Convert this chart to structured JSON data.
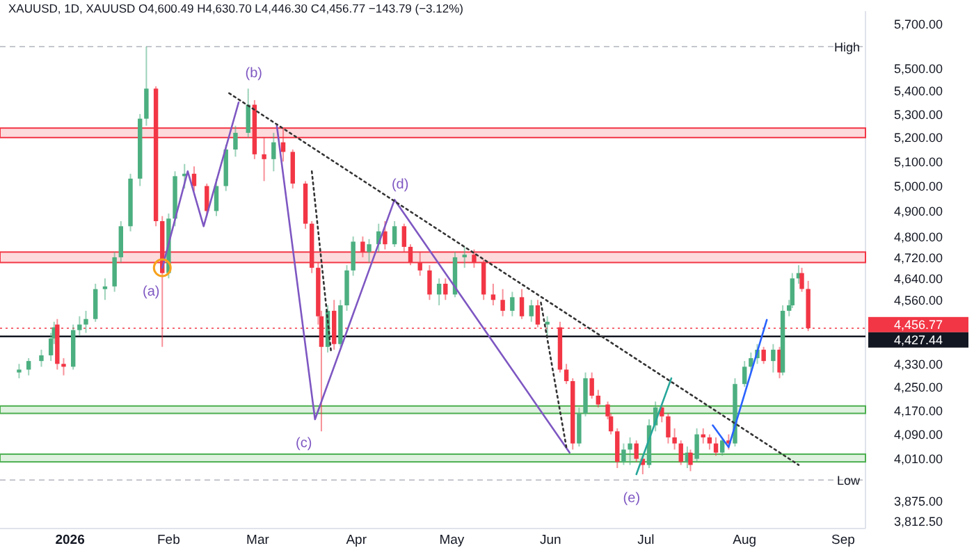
{
  "chart_data": {
    "type": "candlestick",
    "title": "XAUUSD, 1D, XAUUSD O4,600.49 H4,630.70 L4,446.30 C4,456.77 −143.79 (−3.12%)",
    "log": "y",
    "xlim": [
      "2025-12-10",
      "2026-09-08"
    ],
    "ylim": [
      3790,
      5760
    ],
    "xticks": [
      {
        "value": "2026-01-01",
        "label": "2026"
      },
      {
        "value": "2026-02-01",
        "label": "Feb"
      },
      {
        "value": "2026-03-01",
        "label": "Mar"
      },
      {
        "value": "2026-04-01",
        "label": "Apr"
      },
      {
        "value": "2026-05-01",
        "label": "May"
      },
      {
        "value": "2026-06-01",
        "label": "Jun"
      },
      {
        "value": "2026-07-01",
        "label": "Jul"
      },
      {
        "value": "2026-08-01",
        "label": "Aug"
      },
      {
        "value": "2026-09-01",
        "label": "Sep"
      }
    ],
    "yticks": [
      {
        "value": 5700,
        "label": "5,700.00"
      },
      {
        "value": 5500,
        "label": "5,500.00"
      },
      {
        "value": 5400,
        "label": "5,400.00"
      },
      {
        "value": 5300,
        "label": "5,300.00"
      },
      {
        "value": 5200,
        "label": "5,200.00"
      },
      {
        "value": 5100,
        "label": "5,100.00"
      },
      {
        "value": 5000,
        "label": "5,000.00"
      },
      {
        "value": 4900,
        "label": "4,900.00"
      },
      {
        "value": 4800,
        "label": "4,800.00"
      },
      {
        "value": 4720,
        "label": "4,720.00"
      },
      {
        "value": 4640,
        "label": "4,640.00"
      },
      {
        "value": 4560,
        "label": "4,560.00"
      },
      {
        "value": 4456.77,
        "label": "4,456.77"
      },
      {
        "value": 4427.44,
        "label": "4,427.44"
      },
      {
        "value": 4330,
        "label": "4,330.00"
      },
      {
        "value": 4250,
        "label": "4,250.00"
      },
      {
        "value": 4170,
        "label": "4,170.00"
      },
      {
        "value": 4090,
        "label": "4,090.00"
      },
      {
        "value": 4010,
        "label": "4,010.00"
      },
      {
        "value": 3875,
        "label": "3,875.00"
      },
      {
        "value": 3812.5,
        "label": "3,812.50"
      }
    ],
    "ref_lines": [
      {
        "axis": "y",
        "value": 5597.04,
        "label": "High",
        "color": "#b2b5be",
        "line_style": "dashed"
      },
      {
        "axis": "y",
        "value": 3941.75,
        "label": "Low",
        "color": "#b2b5be",
        "line_style": "dashed"
      },
      {
        "axis": "y",
        "value": 4456.77,
        "color": "#f23645",
        "line_style": "dotted"
      },
      {
        "axis": "y",
        "value": 4427.44,
        "color": "#131722",
        "line_style": "solid"
      }
    ],
    "bands": [
      {
        "axis": "y",
        "from": 5200,
        "to": 5240,
        "color": "#f23645"
      },
      {
        "axis": "y",
        "from": 4700,
        "to": 4740,
        "color": "#f23645"
      },
      {
        "axis": "y",
        "from": 4160,
        "to": 4185,
        "color": "#4caf50"
      },
      {
        "axis": "y",
        "from": 4000,
        "to": 4025,
        "color": "#4caf50"
      }
    ],
    "annotations": [
      {
        "text": "(a)",
        "x": "2026-01-30",
        "y": 4680
      },
      {
        "text": "(b)",
        "x": "2026-02-26",
        "y": 5410
      },
      {
        "text": "(c)",
        "x": "2026-03-19",
        "y": 4140
      },
      {
        "text": "(d)",
        "x": "2026-04-13",
        "y": 4945
      },
      {
        "text": "(e)",
        "x": "2026-06-30",
        "y": 3960
      }
    ],
    "series": [
      {
        "x": [
          "2025-12-16",
          "2025-12-19",
          "2025-12-23",
          "2025-12-26",
          "2025-12-27",
          "2025-12-28",
          "2025-12-30",
          "2026-01-02",
          "2026-01-04",
          "2026-01-06",
          "2026-01-09",
          "2026-01-12",
          "2026-01-15",
          "2026-01-17",
          "2026-01-20",
          "2026-01-23",
          "2026-01-25",
          "2026-01-28",
          "2026-01-30",
          "2026-02-01",
          "2026-02-03",
          "2026-02-06",
          "2026-02-09",
          "2026-02-13",
          "2026-02-16",
          "2026-02-19",
          "2026-02-22",
          "2026-02-26",
          "2026-02-28",
          "2026-03-03",
          "2026-03-06",
          "2026-03-09",
          "2026-03-12",
          "2026-03-16",
          "2026-03-18",
          "2026-03-20",
          "2026-03-21",
          "2026-03-23",
          "2026-03-25",
          "2026-03-27",
          "2026-03-29",
          "2026-03-31",
          "2026-04-03",
          "2026-04-05",
          "2026-04-08",
          "2026-04-10",
          "2026-04-13",
          "2026-04-16",
          "2026-04-18",
          "2026-04-21",
          "2026-04-24",
          "2026-04-27",
          "2026-04-29",
          "2026-05-02",
          "2026-05-05",
          "2026-05-08",
          "2026-05-11",
          "2026-05-14",
          "2026-05-17",
          "2026-05-20",
          "2026-05-23",
          "2026-05-26",
          "2026-05-28",
          "2026-05-31",
          "2026-06-04",
          "2026-06-06",
          "2026-06-08",
          "2026-06-10",
          "2026-06-12",
          "2026-06-14",
          "2026-06-16",
          "2026-06-19",
          "2026-06-20",
          "2026-06-22",
          "2026-06-24",
          "2026-06-26",
          "2026-06-28",
          "2026-06-30",
          "2026-07-02",
          "2026-07-04",
          "2026-07-06",
          "2026-07-08",
          "2026-07-10",
          "2026-07-12",
          "2026-07-14",
          "2026-07-15",
          "2026-07-17",
          "2026-07-19",
          "2026-07-21",
          "2026-07-23",
          "2026-07-25",
          "2026-07-27",
          "2026-07-29",
          "2026-08-01",
          "2026-08-03",
          "2026-08-05",
          "2026-08-07",
          "2026-08-10",
          "2026-08-12",
          "2026-08-13",
          "2026-08-15",
          "2026-08-16",
          "2026-08-18",
          "2026-08-19",
          "2026-08-21"
        ],
        "ohlc": [
          [
            4300,
            4330,
            4280,
            4310
          ],
          [
            4310,
            4350,
            4290,
            4340
          ],
          [
            4340,
            4380,
            4320,
            4360
          ],
          [
            4360,
            4440,
            4340,
            4420
          ],
          [
            4420,
            4480,
            4400,
            4460
          ],
          [
            4470,
            4490,
            4310,
            4330
          ],
          [
            4330,
            4350,
            4290,
            4320
          ],
          [
            4320,
            4470,
            4310,
            4450
          ],
          [
            4450,
            4500,
            4430,
            4470
          ],
          [
            4470,
            4520,
            4440,
            4490
          ],
          [
            4490,
            4620,
            4480,
            4600
          ],
          [
            4600,
            4640,
            4560,
            4610
          ],
          [
            4610,
            4740,
            4590,
            4720
          ],
          [
            4720,
            4860,
            4700,
            4840
          ],
          [
            4840,
            5050,
            4820,
            5030
          ],
          [
            5030,
            5300,
            5000,
            5280
          ],
          [
            5280,
            5597.04,
            5250,
            5410
          ],
          [
            5410,
            5420,
            4840,
            4860
          ],
          [
            4860,
            4880,
            4390,
            4660
          ],
          [
            4660,
            4890,
            4640,
            4870
          ],
          [
            4870,
            5060,
            4840,
            5040
          ],
          [
            5040,
            5090,
            4990,
            5050
          ],
          [
            5050,
            5080,
            4980,
            5000
          ],
          [
            5000,
            5010,
            4880,
            4900
          ],
          [
            4900,
            5030,
            4880,
            5000
          ],
          [
            5000,
            5170,
            4980,
            5150
          ],
          [
            5150,
            5250,
            5120,
            5220
          ],
          [
            5220,
            5410,
            5200,
            5340
          ],
          [
            5340,
            5360,
            5110,
            5130
          ],
          [
            5130,
            5200,
            5020,
            5110
          ],
          [
            5110,
            5220,
            5060,
            5180
          ],
          [
            5180,
            5240,
            5100,
            5140
          ],
          [
            5140,
            5150,
            4990,
            5010
          ],
          [
            5010,
            5020,
            4830,
            4850
          ],
          [
            4850,
            4860,
            4660,
            4680
          ],
          [
            4680,
            4700,
            4470,
            4500
          ],
          [
            4500,
            4520,
            4100,
            4390
          ],
          [
            4390,
            4540,
            4370,
            4520
          ],
          [
            4520,
            4560,
            4380,
            4400
          ],
          [
            4400,
            4560,
            4390,
            4540
          ],
          [
            4540,
            4690,
            4520,
            4670
          ],
          [
            4670,
            4800,
            4650,
            4780
          ],
          [
            4780,
            4800,
            4720,
            4740
          ],
          [
            4740,
            4790,
            4700,
            4770
          ],
          [
            4770,
            4850,
            4740,
            4820
          ],
          [
            4820,
            4860,
            4750,
            4770
          ],
          [
            4770,
            4860,
            4760,
            4840
          ],
          [
            4840,
            4850,
            4740,
            4760
          ],
          [
            4760,
            4770,
            4690,
            4700
          ],
          [
            4700,
            4740,
            4650,
            4670
          ],
          [
            4670,
            4690,
            4560,
            4580
          ],
          [
            4580,
            4640,
            4540,
            4620
          ],
          [
            4620,
            4640,
            4560,
            4580
          ],
          [
            4580,
            4740,
            4570,
            4720
          ],
          [
            4720,
            4760,
            4680,
            4730
          ],
          [
            4730,
            4750,
            4680,
            4700
          ],
          [
            4700,
            4710,
            4560,
            4580
          ],
          [
            4580,
            4620,
            4540,
            4560
          ],
          [
            4560,
            4600,
            4500,
            4520
          ],
          [
            4520,
            4590,
            4500,
            4570
          ],
          [
            4570,
            4600,
            4490,
            4500
          ],
          [
            4500,
            4560,
            4480,
            4540
          ],
          [
            4540,
            4560,
            4460,
            4470
          ],
          [
            4470,
            4500,
            4430,
            4480
          ],
          [
            4460,
            4480,
            4300,
            4310
          ],
          [
            4310,
            4330,
            4260,
            4270
          ],
          [
            4270,
            4280,
            4040,
            4060
          ],
          [
            4060,
            4180,
            4050,
            4160
          ],
          [
            4160,
            4300,
            4150,
            4280
          ],
          [
            4280,
            4300,
            4210,
            4220
          ],
          [
            4220,
            4240,
            4180,
            4190
          ],
          [
            4190,
            4200,
            4140,
            4150
          ],
          [
            4150,
            4160,
            4090,
            4100
          ],
          [
            4100,
            4110,
            3980,
            4000
          ],
          [
            4000,
            4060,
            3990,
            4040
          ],
          [
            4040,
            4080,
            3990,
            4060
          ],
          [
            4060,
            4070,
            4000,
            4010
          ],
          [
            4010,
            4020,
            3960,
            3990
          ],
          [
            3990,
            4140,
            3980,
            4120
          ],
          [
            4120,
            4200,
            4100,
            4180
          ],
          [
            4180,
            4190,
            4130,
            4150
          ],
          [
            4150,
            4160,
            4060,
            4080
          ],
          [
            4080,
            4110,
            4040,
            4060
          ],
          [
            4060,
            4070,
            3990,
            4000
          ],
          [
            4000,
            4050,
            3980,
            4030
          ],
          [
            4030,
            4040,
            3970,
            3990
          ],
          [
            4010,
            4110,
            4000,
            4090
          ],
          [
            4090,
            4110,
            4060,
            4080
          ],
          [
            4080,
            4090,
            4040,
            4060
          ],
          [
            4060,
            4080,
            4020,
            4030
          ],
          [
            4030,
            4080,
            4020,
            4070
          ],
          [
            4070,
            4090,
            4040,
            4060
          ],
          [
            4060,
            4280,
            4050,
            4260
          ],
          [
            4260,
            4340,
            4250,
            4320
          ],
          [
            4320,
            4370,
            4300,
            4350
          ],
          [
            4350,
            4400,
            4330,
            4380
          ],
          [
            4380,
            4390,
            4330,
            4340
          ],
          [
            4340,
            4400,
            4300,
            4380
          ],
          [
            4380,
            4390,
            4280,
            4300
          ],
          [
            4300,
            4540,
            4290,
            4520
          ],
          [
            4520,
            4560,
            4500,
            4540
          ],
          [
            4540,
            4660,
            4530,
            4640
          ],
          [
            4640,
            4690,
            4620,
            4660
          ],
          [
            4660,
            4680,
            4590,
            4600.56
          ],
          [
            4600.49,
            4630.7,
            4446.3,
            4456.77
          ]
        ]
      },
      {
        "type": "line",
        "color": "#7e57c2",
        "line_style": "solid",
        "x": [
          "2026-01-30",
          "2026-02-07",
          "2026-02-12",
          "2026-02-23"
        ],
        "values": [
          4680,
          5060,
          4840,
          5350
        ]
      },
      {
        "type": "line",
        "color": "#7e57c2",
        "line_style": "solid",
        "x": [
          "2026-03-07",
          "2026-03-19",
          "2026-04-13",
          "2026-06-07"
        ],
        "values": [
          5250,
          4140,
          4945,
          4030
        ]
      },
      {
        "type": "line",
        "color": "#333333",
        "line_style": "dotted",
        "x": [
          "2026-02-20",
          "2026-08-18"
        ],
        "values": [
          5390,
          3990
        ]
      },
      {
        "type": "line",
        "color": "#333333",
        "line_style": "dotted",
        "x": [
          "2026-03-18",
          "2026-03-24"
        ],
        "values": [
          5060,
          4378
        ]
      },
      {
        "type": "line",
        "color": "#333333",
        "line_style": "dotted",
        "x": [
          "2026-05-29",
          "2026-06-06"
        ],
        "values": [
          4550,
          4048
        ]
      },
      {
        "type": "line",
        "color": "#26a69a",
        "line_style": "solid",
        "x": [
          "2026-06-28",
          "2026-07-09"
        ],
        "values": [
          3960,
          4280
        ]
      },
      {
        "type": "line",
        "color": "#2962ff",
        "line_style": "solid",
        "x": [
          "2026-07-22",
          "2026-07-27",
          "2026-08-08"
        ],
        "values": [
          4120,
          4048,
          4487
        ]
      },
      {
        "type": "scatter",
        "color": "#f7a21b",
        "marker": "circle",
        "x": [
          "2026-01-30"
        ],
        "values": [
          4680
        ]
      }
    ]
  }
}
